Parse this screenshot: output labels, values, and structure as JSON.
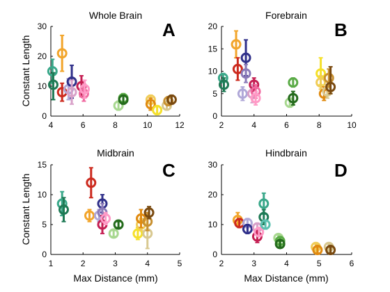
{
  "chart_data": [
    {
      "type": "scatter",
      "title": "Whole Brain",
      "panel_letter": "A",
      "xlabel": "",
      "ylabel": "Constant Length",
      "xlim": [
        4,
        12
      ],
      "ylim": [
        0,
        30
      ],
      "xticks": [
        "4",
        "6",
        "8",
        "10",
        "12"
      ],
      "yticks": [
        "0",
        "10",
        "20",
        "30"
      ],
      "points": [
        {
          "x": 4.1,
          "y": 15.0,
          "lo": 11.0,
          "hi": 19.0,
          "color": "#3aa88a"
        },
        {
          "x": 4.15,
          "y": 10.5,
          "lo": 5.5,
          "hi": 14.5,
          "color": "#1f7a55"
        },
        {
          "x": 4.7,
          "y": 21.0,
          "lo": 15.0,
          "hi": 27.0,
          "color": "#f2a52b"
        },
        {
          "x": 4.7,
          "y": 8.0,
          "lo": 5.0,
          "hi": 11.0,
          "color": "#cc2a1e"
        },
        {
          "x": 5.1,
          "y": 9.0,
          "lo": 5.5,
          "hi": 12.5,
          "color": "#b0a8d8"
        },
        {
          "x": 5.3,
          "y": 11.5,
          "lo": 6.0,
          "hi": 17.0,
          "color": "#30308a"
        },
        {
          "x": 5.3,
          "y": 8.0,
          "lo": 4.0,
          "hi": 12.0,
          "color": "#d8a0c8"
        },
        {
          "x": 5.9,
          "y": 10.0,
          "lo": 6.5,
          "hi": 13.5,
          "color": "#c41e52"
        },
        {
          "x": 6.05,
          "y": 7.5,
          "lo": 5.0,
          "hi": 10.0,
          "color": "#f06aa0"
        },
        {
          "x": 6.1,
          "y": 9.0,
          "lo": 6.0,
          "hi": 12.0,
          "color": "#ff9ac6"
        },
        {
          "x": 8.2,
          "y": 3.5,
          "lo": 2.0,
          "hi": 5.0,
          "color": "#a8d890"
        },
        {
          "x": 8.5,
          "y": 6.0,
          "lo": 4.5,
          "hi": 7.5,
          "color": "#5aab46"
        },
        {
          "x": 8.5,
          "y": 5.5,
          "lo": 4.0,
          "hi": 7.0,
          "color": "#246b1c"
        },
        {
          "x": 10.2,
          "y": 5.5,
          "lo": 4.0,
          "hi": 7.0,
          "color": "#f0cc58"
        },
        {
          "x": 10.2,
          "y": 4.0,
          "lo": 2.0,
          "hi": 6.0,
          "color": "#e08a10"
        },
        {
          "x": 10.6,
          "y": 2.0,
          "lo": 0.5,
          "hi": 3.5,
          "color": "#f5e02a"
        },
        {
          "x": 11.2,
          "y": 3.5,
          "lo": 2.0,
          "hi": 5.0,
          "color": "#d8c890"
        },
        {
          "x": 11.3,
          "y": 5.0,
          "lo": 3.5,
          "hi": 6.5,
          "color": "#c89030"
        },
        {
          "x": 11.5,
          "y": 5.5,
          "lo": 4.0,
          "hi": 7.0,
          "color": "#7a4a10"
        }
      ]
    },
    {
      "type": "scatter",
      "title": "Forebrain",
      "panel_letter": "B",
      "xlabel": "",
      "ylabel": "",
      "xlim": [
        2,
        10
      ],
      "ylim": [
        0,
        20
      ],
      "xticks": [
        "2",
        "4",
        "6",
        "8",
        "10"
      ],
      "yticks": [
        "0",
        "5",
        "10",
        "15",
        "20"
      ],
      "points": [
        {
          "x": 2.1,
          "y": 8.5,
          "lo": 7.5,
          "hi": 9.5,
          "color": "#3aa88a"
        },
        {
          "x": 2.15,
          "y": 7.0,
          "lo": 5.5,
          "hi": 8.5,
          "color": "#1f7a55"
        },
        {
          "x": 2.9,
          "y": 16.0,
          "lo": 13.0,
          "hi": 19.0,
          "color": "#f2a52b"
        },
        {
          "x": 3.0,
          "y": 10.5,
          "lo": 8.0,
          "hi": 13.0,
          "color": "#cc2a1e"
        },
        {
          "x": 3.3,
          "y": 5.0,
          "lo": 3.5,
          "hi": 6.5,
          "color": "#b0a8d8"
        },
        {
          "x": 3.5,
          "y": 13.0,
          "lo": 9.0,
          "hi": 17.0,
          "color": "#30308a"
        },
        {
          "x": 3.5,
          "y": 9.5,
          "lo": 7.5,
          "hi": 11.5,
          "color": "#8a7ab8"
        },
        {
          "x": 3.9,
          "y": 5.0,
          "lo": 3.0,
          "hi": 7.0,
          "color": "#d8a0c8"
        },
        {
          "x": 4.0,
          "y": 7.0,
          "lo": 5.5,
          "hi": 8.5,
          "color": "#c41e52"
        },
        {
          "x": 4.1,
          "y": 5.5,
          "lo": 4.0,
          "hi": 7.0,
          "color": "#f06aa0"
        },
        {
          "x": 4.1,
          "y": 4.0,
          "lo": 2.5,
          "hi": 5.5,
          "color": "#ff9ac6"
        },
        {
          "x": 6.2,
          "y": 3.0,
          "lo": 2.0,
          "hi": 4.0,
          "color": "#a8d890"
        },
        {
          "x": 6.4,
          "y": 7.5,
          "lo": 6.5,
          "hi": 8.5,
          "color": "#5aab46"
        },
        {
          "x": 6.4,
          "y": 4.0,
          "lo": 2.5,
          "hi": 5.5,
          "color": "#246b1c"
        },
        {
          "x": 8.1,
          "y": 9.5,
          "lo": 7.0,
          "hi": 13.0,
          "color": "#f5e02a"
        },
        {
          "x": 8.1,
          "y": 7.5,
          "lo": 6.0,
          "hi": 9.0,
          "color": "#f0cc58"
        },
        {
          "x": 8.3,
          "y": 5.0,
          "lo": 3.5,
          "hi": 6.5,
          "color": "#e08a10"
        },
        {
          "x": 8.5,
          "y": 5.5,
          "lo": 4.0,
          "hi": 7.0,
          "color": "#d8c890"
        },
        {
          "x": 8.6,
          "y": 8.5,
          "lo": 6.5,
          "hi": 10.5,
          "color": "#c89030"
        },
        {
          "x": 8.7,
          "y": 6.5,
          "lo": 5.0,
          "hi": 11.0,
          "color": "#7a4a10"
        }
      ]
    },
    {
      "type": "scatter",
      "title": "Midbrain",
      "panel_letter": "C",
      "xlabel": "Max Distance (mm)",
      "ylabel": "Constant Length",
      "xlim": [
        1,
        5
      ],
      "ylim": [
        0,
        15
      ],
      "xticks": [
        "1",
        "2",
        "3",
        "4",
        "5"
      ],
      "yticks": [
        "0",
        "5",
        "10",
        "15"
      ],
      "points": [
        {
          "x": 1.35,
          "y": 8.5,
          "lo": 6.5,
          "hi": 10.5,
          "color": "#3aa88a"
        },
        {
          "x": 1.4,
          "y": 7.5,
          "lo": 5.5,
          "hi": 9.5,
          "color": "#1f7a55"
        },
        {
          "x": 2.2,
          "y": 6.5,
          "lo": 5.5,
          "hi": 7.5,
          "color": "#f2a52b"
        },
        {
          "x": 2.25,
          "y": 12.0,
          "lo": 9.5,
          "hi": 14.5,
          "color": "#cc2a1e"
        },
        {
          "x": 2.5,
          "y": 6.5,
          "lo": 5.5,
          "hi": 7.5,
          "color": "#b0a8d8"
        },
        {
          "x": 2.6,
          "y": 8.5,
          "lo": 7.0,
          "hi": 10.0,
          "color": "#30308a"
        },
        {
          "x": 2.6,
          "y": 7.0,
          "lo": 5.5,
          "hi": 8.5,
          "color": "#8a7ab8"
        },
        {
          "x": 2.6,
          "y": 5.0,
          "lo": 3.5,
          "hi": 6.5,
          "color": "#c41e52"
        },
        {
          "x": 2.7,
          "y": 6.0,
          "lo": 5.0,
          "hi": 7.0,
          "color": "#ff9ac6"
        },
        {
          "x": 2.95,
          "y": 3.5,
          "lo": 3.0,
          "hi": 4.0,
          "color": "#a8d890"
        },
        {
          "x": 3.1,
          "y": 5.0,
          "lo": 4.5,
          "hi": 5.5,
          "color": "#246b1c"
        },
        {
          "x": 3.7,
          "y": 3.5,
          "lo": 2.5,
          "hi": 4.5,
          "color": "#f5e02a"
        },
        {
          "x": 3.8,
          "y": 5.0,
          "lo": 4.0,
          "hi": 6.0,
          "color": "#f0cc58"
        },
        {
          "x": 3.8,
          "y": 6.0,
          "lo": 4.5,
          "hi": 7.5,
          "color": "#e08a10"
        },
        {
          "x": 4.0,
          "y": 3.5,
          "lo": 1.0,
          "hi": 6.0,
          "color": "#d8c890"
        },
        {
          "x": 4.0,
          "y": 5.5,
          "lo": 4.0,
          "hi": 7.0,
          "color": "#c89030"
        },
        {
          "x": 4.05,
          "y": 7.0,
          "lo": 6.0,
          "hi": 8.0,
          "color": "#7a4a10"
        }
      ]
    },
    {
      "type": "scatter",
      "title": "Hindbrain",
      "panel_letter": "D",
      "xlabel": "Max Distance (mm)",
      "ylabel": "",
      "xlim": [
        2,
        6
      ],
      "ylim": [
        0,
        30
      ],
      "xticks": [
        "2",
        "3",
        "4",
        "5",
        "6"
      ],
      "yticks": [
        "0",
        "10",
        "20",
        "30"
      ],
      "points": [
        {
          "x": 2.5,
          "y": 11.5,
          "lo": 9.5,
          "hi": 14.0,
          "color": "#f2a52b"
        },
        {
          "x": 2.55,
          "y": 10.5,
          "lo": 9.0,
          "hi": 12.0,
          "color": "#cc2a1e"
        },
        {
          "x": 2.8,
          "y": 10.5,
          "lo": 9.0,
          "hi": 12.0,
          "color": "#b0a8d8"
        },
        {
          "x": 2.8,
          "y": 8.5,
          "lo": 7.0,
          "hi": 10.0,
          "color": "#30308a"
        },
        {
          "x": 3.1,
          "y": 9.0,
          "lo": 7.5,
          "hi": 10.5,
          "color": "#d8a0c8"
        },
        {
          "x": 3.1,
          "y": 6.0,
          "lo": 4.0,
          "hi": 8.0,
          "color": "#c41e52"
        },
        {
          "x": 3.15,
          "y": 7.5,
          "lo": 6.0,
          "hi": 9.0,
          "color": "#ff9ac6"
        },
        {
          "x": 3.3,
          "y": 17.0,
          "lo": 13.5,
          "hi": 20.5,
          "color": "#3aa88a"
        },
        {
          "x": 3.3,
          "y": 12.5,
          "lo": 10.0,
          "hi": 15.0,
          "color": "#1f7a55"
        },
        {
          "x": 3.35,
          "y": 10.0,
          "lo": 8.5,
          "hi": 11.5,
          "color": "#5ac0b0"
        },
        {
          "x": 3.75,
          "y": 5.5,
          "lo": 4.5,
          "hi": 6.5,
          "color": "#a8d890"
        },
        {
          "x": 3.8,
          "y": 4.5,
          "lo": 3.5,
          "hi": 5.5,
          "color": "#5aab46"
        },
        {
          "x": 3.8,
          "y": 3.5,
          "lo": 2.5,
          "hi": 4.5,
          "color": "#246b1c"
        },
        {
          "x": 4.9,
          "y": 2.5,
          "lo": 1.5,
          "hi": 3.5,
          "color": "#f0cc58"
        },
        {
          "x": 4.95,
          "y": 1.5,
          "lo": 0.5,
          "hi": 2.5,
          "color": "#e08a10"
        },
        {
          "x": 5.3,
          "y": 2.5,
          "lo": 1.5,
          "hi": 3.5,
          "color": "#d8c890"
        },
        {
          "x": 5.35,
          "y": 1.5,
          "lo": 0.5,
          "hi": 2.5,
          "color": "#7a4a10"
        }
      ]
    }
  ]
}
